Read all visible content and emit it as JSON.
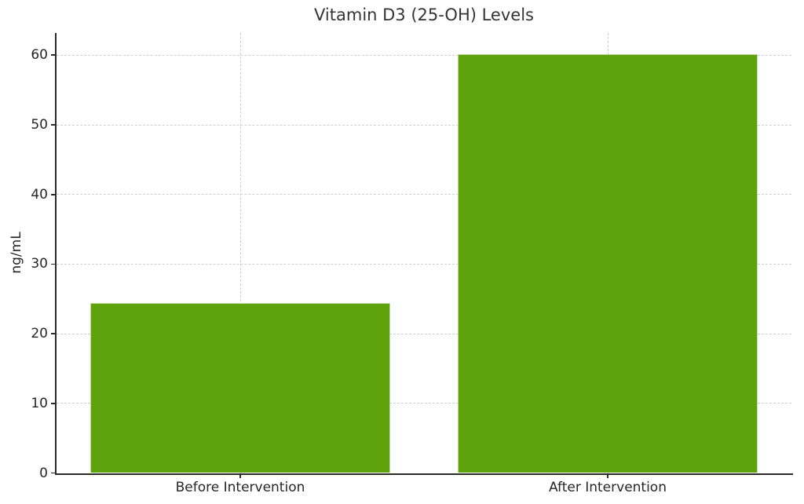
{
  "chart_data": {
    "type": "bar",
    "title": "Vitamin D3 (25-OH) Levels",
    "categories": [
      "Before Intervention",
      "After Intervention"
    ],
    "values": [
      24.4,
      60.2
    ],
    "xlabel": "",
    "ylabel": "ng/mL",
    "ylim": [
      0,
      63.2
    ],
    "yticks": [
      0,
      10,
      20,
      30,
      40,
      50,
      60
    ],
    "bar_color": "#5fa30c",
    "bar_edge_color": "#ffffff",
    "grid": true,
    "grid_style": "dashed",
    "grid_color": "#cfcfcf",
    "axis_color": "#2a2a2a",
    "text_color": "#262626",
    "background": "#ffffff",
    "legend": "none",
    "bar_width_fraction": 0.815
  }
}
